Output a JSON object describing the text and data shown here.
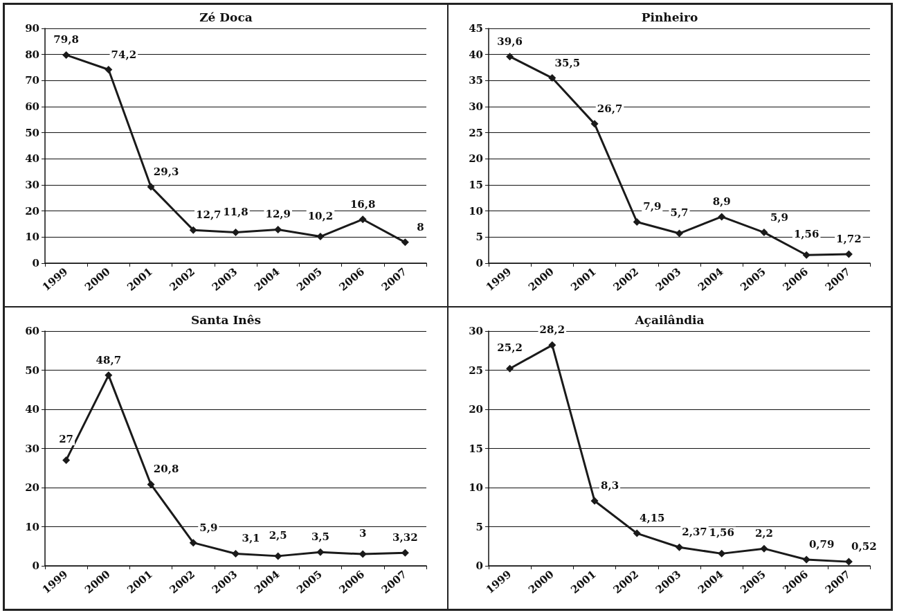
{
  "chart_data": [
    {
      "type": "line",
      "title": "Zé Doca",
      "categories": [
        "1999",
        "2000",
        "2001",
        "2002",
        "2003",
        "2004",
        "2005",
        "2006",
        "2007"
      ],
      "values": [
        79.8,
        74.2,
        29.3,
        12.7,
        11.8,
        12.9,
        10.2,
        16.8,
        8
      ],
      "value_labels": [
        "79,8",
        "74,2",
        "29,3",
        "12,7",
        "11,8",
        "12,9",
        "10,2",
        "16,8",
        "8"
      ],
      "color": "#1a1a1a",
      "ylim": [
        0,
        90
      ],
      "yticks": [
        0,
        10,
        20,
        30,
        40,
        50,
        60,
        70,
        80,
        90
      ],
      "grid": "y",
      "marker": "diamond"
    },
    {
      "type": "line",
      "title": "Pinheiro",
      "categories": [
        "1999",
        "2000",
        "2001",
        "2002",
        "2003",
        "2004",
        "2005",
        "2006",
        "2007"
      ],
      "values": [
        39.6,
        35.5,
        26.7,
        7.9,
        5.7,
        8.9,
        5.9,
        1.56,
        1.72
      ],
      "value_labels": [
        "39,6",
        "35,5",
        "26,7",
        "7,9",
        "5,7",
        "8,9",
        "5,9",
        "1,56",
        "1,72"
      ],
      "color": "#1a1a1a",
      "ylim": [
        0,
        45
      ],
      "yticks": [
        0,
        5,
        10,
        15,
        20,
        25,
        30,
        35,
        40,
        45
      ],
      "grid": "y",
      "marker": "diamond"
    },
    {
      "type": "line",
      "title": "Santa Inês",
      "categories": [
        "1999",
        "2000",
        "2001",
        "2002",
        "2003",
        "2004",
        "2005",
        "2006",
        "2007"
      ],
      "values": [
        27,
        48.7,
        20.8,
        5.9,
        3.1,
        2.5,
        3.5,
        3,
        3.32
      ],
      "value_labels": [
        "27",
        "48,7",
        "20,8",
        "5,9",
        "3,1",
        "2,5",
        "3,5",
        "3",
        "3,32"
      ],
      "color": "#1a1a1a",
      "ylim": [
        0,
        60
      ],
      "yticks": [
        0,
        10,
        20,
        30,
        40,
        50,
        60
      ],
      "grid": "y",
      "marker": "diamond"
    },
    {
      "type": "line",
      "title": "Açailândia",
      "categories": [
        "1999",
        "2000",
        "2001",
        "2002",
        "2003",
        "2004",
        "2005",
        "2006",
        "2007"
      ],
      "values": [
        25.2,
        28.2,
        8.3,
        4.15,
        2.37,
        1.56,
        2.2,
        0.79,
        0.52
      ],
      "value_labels": [
        "25,2",
        "28,2",
        "8,3",
        "4,15",
        "2,37",
        "1,56",
        "2,2",
        "0,79",
        "0,52"
      ],
      "color": "#1a1a1a",
      "ylim": [
        0,
        30
      ],
      "yticks": [
        0,
        5,
        10,
        15,
        20,
        25,
        30
      ],
      "grid": "y",
      "marker": "diamond"
    }
  ]
}
